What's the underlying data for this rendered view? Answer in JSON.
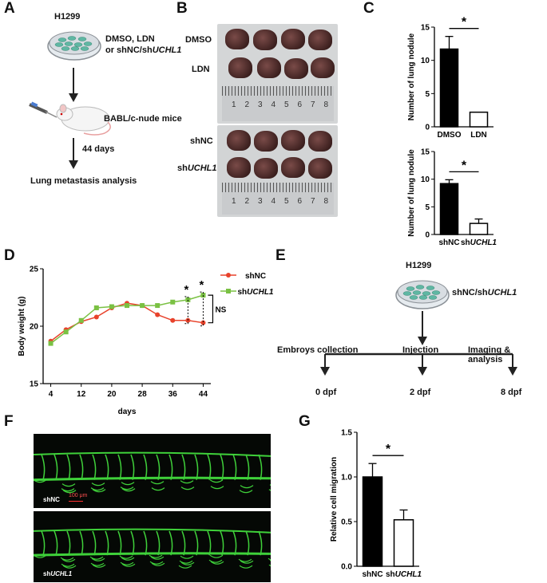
{
  "panels": {
    "A": {
      "label": "A",
      "cell_line": "H1299",
      "treatment_line1": "DMSO, LDN",
      "treatment_line2_prefix": "or shNC/sh",
      "treatment_line2_gene": "UCHL1",
      "mice": "BABL/c-nude mice",
      "duration": "44 days",
      "outcome": "Lung metastasis analysis"
    },
    "B": {
      "label": "B",
      "rows_top": [
        "DMSO",
        "LDN"
      ],
      "row_shnc": "shNC",
      "row_sh_prefix": "sh",
      "row_sh_gene": "UCHL1",
      "ruler_numbers": [
        "1",
        "2",
        "3",
        "4",
        "5",
        "6",
        "7",
        "8"
      ]
    },
    "C": {
      "label": "C"
    },
    "D": {
      "label": "D"
    },
    "E": {
      "label": "E",
      "cell_line": "H1299",
      "construct_prefix": "shNC/sh",
      "construct_gene": "UCHL1",
      "steps": [
        "Embroys collection",
        "Injection",
        "Imaging & analysis"
      ],
      "timepoints": [
        "0 dpf",
        "2 dpf",
        "8 dpf"
      ]
    },
    "F": {
      "label": "F",
      "image_shnc": "shNC",
      "scale_bar": "100 μm",
      "image_sh_prefix": "sh",
      "image_sh_gene": "UCHL1"
    },
    "G": {
      "label": "G"
    }
  },
  "colors": {
    "shnc_red": "#e8422b",
    "shuchl1_green": "#7ac143",
    "bar_black": "#000000"
  },
  "chart_data": [
    {
      "id": "C-top",
      "type": "bar",
      "categories": [
        "DMSO",
        "LDN"
      ],
      "values": [
        11.7,
        2.2
      ],
      "errors": [
        1.9,
        0
      ],
      "ylabel": "Number of lung nodule",
      "ylim": [
        0,
        15
      ],
      "yticks": [
        0,
        5,
        10,
        15
      ],
      "significance": "*"
    },
    {
      "id": "C-bottom",
      "type": "bar",
      "categories": [
        "shNC",
        "shUCHL1"
      ],
      "values": [
        9.2,
        2.0
      ],
      "errors": [
        0.7,
        0.8
      ],
      "ylabel": "Number of lung nodule",
      "ylim": [
        0,
        15
      ],
      "yticks": [
        0,
        5,
        10,
        15
      ],
      "significance": "*"
    },
    {
      "id": "D",
      "type": "line",
      "xlabel": "days",
      "ylabel": "Body weight (g)",
      "xticks": [
        4,
        12,
        20,
        28,
        36,
        44
      ],
      "ylim": [
        15,
        25
      ],
      "yticks": [
        15,
        20,
        25
      ],
      "xlim": [
        2,
        46
      ],
      "series": [
        {
          "name": "shNC",
          "x": [
            4,
            8,
            12,
            16,
            20,
            24,
            28,
            32,
            36,
            40,
            44
          ],
          "y": [
            18.7,
            19.7,
            20.4,
            20.8,
            21.6,
            22.0,
            21.8,
            21.0,
            20.5,
            20.5,
            20.3
          ]
        },
        {
          "name": "shUCHL1",
          "x": [
            4,
            8,
            12,
            16,
            20,
            24,
            28,
            32,
            36,
            40,
            44
          ],
          "y": [
            18.5,
            19.5,
            20.5,
            21.6,
            21.7,
            21.8,
            21.8,
            21.8,
            22.1,
            22.3,
            22.7
          ]
        }
      ],
      "annotations": [
        "*",
        "*",
        "NS"
      ]
    },
    {
      "id": "G",
      "type": "bar",
      "categories": [
        "shNC",
        "shUCHL1"
      ],
      "values": [
        1.0,
        0.52
      ],
      "errors": [
        0.15,
        0.11
      ],
      "ylabel": "Relative cell migration",
      "ylim": [
        0,
        1.5
      ],
      "yticks": [
        0.0,
        0.5,
        1.0,
        1.5
      ],
      "significance": "*"
    }
  ]
}
